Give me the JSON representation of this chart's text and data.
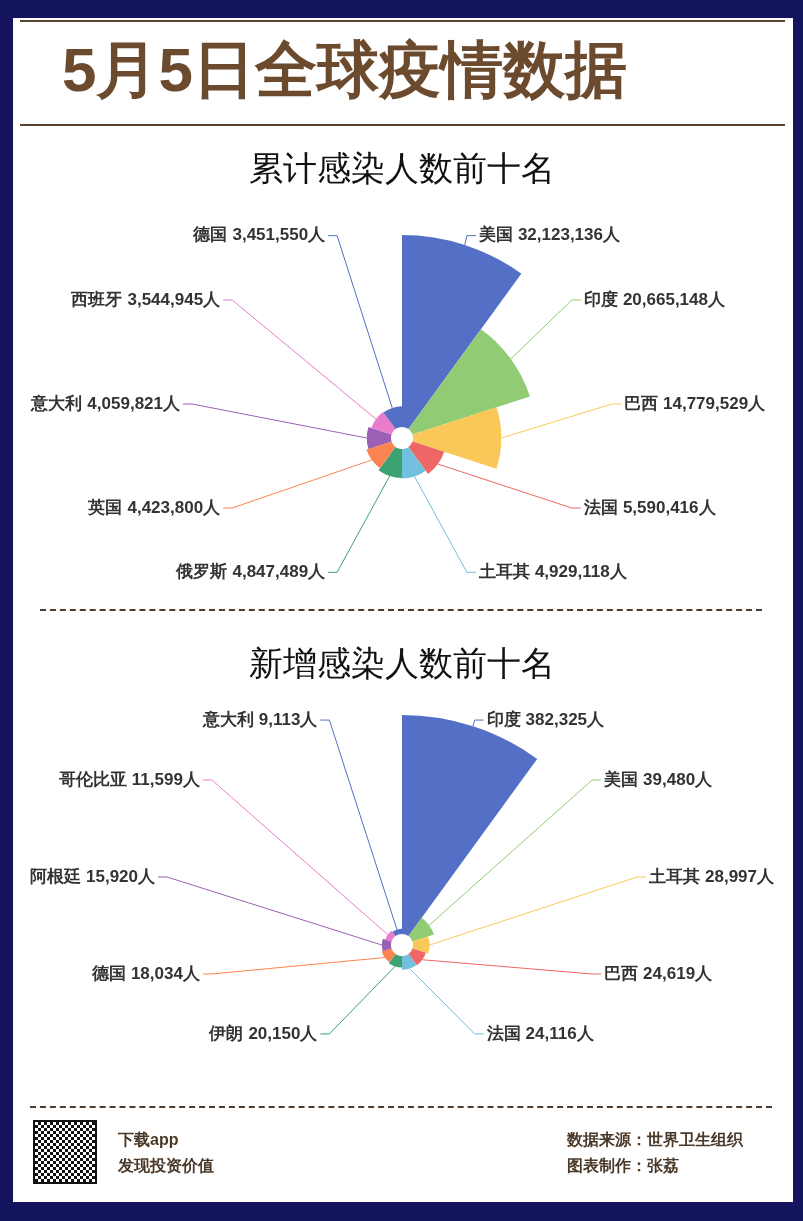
{
  "chart_data": [
    {
      "type": "other",
      "title": "5月5日全球疫情数据",
      "subtitle": "累计感染人数前十名",
      "categories": [
        "美国",
        "印度",
        "巴西",
        "法国",
        "土耳其",
        "俄罗斯",
        "英国",
        "意大利",
        "西班牙",
        "德国"
      ],
      "values": [
        32123136,
        20665148,
        14779529,
        5590416,
        4929118,
        4847489,
        4423800,
        4059821,
        3544945,
        3451550
      ],
      "value_labels": [
        "32,123,136人",
        "20,665,148人",
        "14,779,529人",
        "5,590,416人",
        "4,929,118人",
        "4,847,489人",
        "4,423,800人",
        "4,059,821人",
        "3,544,945人",
        "3,451,550人"
      ],
      "colors": [
        "#5470c6",
        "#91cc75",
        "#fac858",
        "#ee6666",
        "#73c0de",
        "#3ba272",
        "#fc8452",
        "#9a60b4",
        "#ea7ccc",
        "#5470c6"
      ]
    },
    {
      "type": "other",
      "title": "新增感染人数前十名",
      "categories": [
        "印度",
        "美国",
        "土耳其",
        "巴西",
        "法国",
        "伊朗",
        "德国",
        "阿根廷",
        "哥伦比亚",
        "意大利"
      ],
      "values": [
        382325,
        39480,
        28997,
        24619,
        24116,
        20150,
        18034,
        15920,
        11599,
        9113
      ],
      "value_labels": [
        "382,325人",
        "39,480人",
        "28,997人",
        "24,619人",
        "24,116人",
        "20,150人",
        "18,034人",
        "15,920人",
        "11,599人",
        "9,113人"
      ],
      "colors": [
        "#5470c6",
        "#91cc75",
        "#fac858",
        "#ee6666",
        "#73c0de",
        "#3ba272",
        "#fc8452",
        "#9a60b4",
        "#ea7ccc",
        "#5470c6"
      ],
      "annotations": [
        "下载app",
        "发现投资价值",
        "数据来源：世界卫生组织",
        "图表制作：张荔"
      ]
    }
  ]
}
